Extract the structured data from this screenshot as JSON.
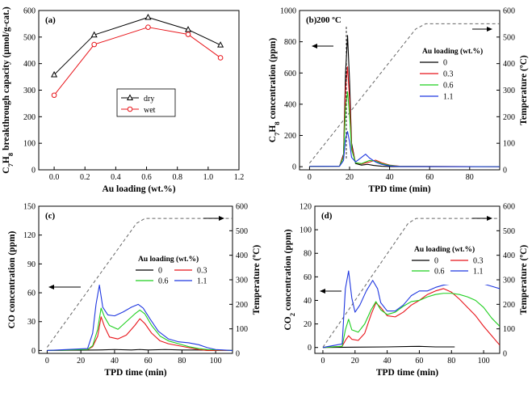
{
  "chart_data": [
    {
      "id": "a",
      "type": "line",
      "panel_label": "(a)",
      "xlabel": "Au loading (wt.%)",
      "ylabel": "C7H8 breakthrough capacity (μmol/g-cat.)",
      "xlim": [
        -0.1,
        1.2
      ],
      "ylim": [
        0,
        600
      ],
      "xticks": [
        "0.0",
        "0.2",
        "0.4",
        "0.6",
        "0.8",
        "1.0",
        "1.2"
      ],
      "yticks": [
        "0",
        "100",
        "200",
        "300",
        "400",
        "500",
        "600"
      ],
      "legend_position": "center-right",
      "series": [
        {
          "name": "dry",
          "color": "#000000",
          "marker": "triangle",
          "x": [
            0.0,
            0.26,
            0.61,
            0.87,
            1.08
          ],
          "y": [
            358,
            508,
            574,
            528,
            470
          ]
        },
        {
          "name": "wet",
          "color": "#e8141a",
          "marker": "circle",
          "x": [
            0.0,
            0.26,
            0.61,
            0.87,
            1.08
          ],
          "y": [
            281,
            472,
            537,
            510,
            422
          ]
        }
      ]
    },
    {
      "id": "b",
      "type": "line",
      "panel_label": "(b)",
      "annotation": "200 ºC",
      "xlabel": "TPD time (min)",
      "ylabel": "C7H8 concentration (ppm)",
      "y2label": "Temperature (ºC)",
      "xlim": [
        -5,
        95
      ],
      "ylim": [
        -20,
        1000
      ],
      "y2lim": [
        0,
        600
      ],
      "xticks": [
        "0",
        "20",
        "40",
        "60",
        "80"
      ],
      "yticks": [
        "0",
        "200",
        "400",
        "600",
        "800",
        "1000"
      ],
      "y2ticks": [
        "0",
        "100",
        "200",
        "300",
        "400",
        "500",
        "600"
      ],
      "legend_title": "Au loading (wt.%)",
      "legend_position": "top-right",
      "temperature": {
        "x": [
          0,
          53,
          58,
          95
        ],
        "y": [
          25,
          530,
          550,
          550
        ]
      },
      "series": [
        {
          "name": "0",
          "color": "#000000",
          "x": [
            0,
            15,
            17,
            18,
            19,
            20,
            21,
            23,
            26,
            29,
            32,
            36,
            40,
            45,
            95
          ],
          "y": [
            2,
            3,
            80,
            600,
            840,
            550,
            150,
            20,
            10,
            15,
            8,
            3,
            1,
            0,
            0
          ]
        },
        {
          "name": "0.3",
          "color": "#e8141a",
          "x": [
            0,
            15,
            17,
            18,
            19,
            20,
            21,
            23,
            26,
            30,
            33,
            36,
            40,
            45,
            95
          ],
          "y": [
            2,
            3,
            70,
            500,
            640,
            430,
            130,
            25,
            18,
            30,
            42,
            25,
            10,
            3,
            0
          ]
        },
        {
          "name": "0.6",
          "color": "#1fcf1f",
          "x": [
            0,
            15,
            17,
            18,
            19,
            20,
            21,
            23,
            26,
            30,
            33,
            36,
            40,
            45,
            95
          ],
          "y": [
            2,
            3,
            60,
            380,
            480,
            330,
            110,
            25,
            20,
            40,
            35,
            20,
            8,
            2,
            0
          ]
        },
        {
          "name": "1.1",
          "color": "#1f37e0",
          "x": [
            0,
            15,
            17,
            18,
            19,
            20,
            21,
            23,
            26,
            28,
            30,
            33,
            36,
            40,
            45,
            95
          ],
          "y": [
            2,
            3,
            40,
            180,
            225,
            160,
            60,
            30,
            60,
            80,
            55,
            30,
            15,
            5,
            1,
            0
          ]
        }
      ]
    },
    {
      "id": "c",
      "type": "line",
      "panel_label": "(c)",
      "xlabel": "TPD time (min)",
      "ylabel": "CO concentration (ppm)",
      "y2label": "Temperature (ºC)",
      "xlim": [
        -5,
        110
      ],
      "ylim": [
        -3,
        150
      ],
      "y2lim": [
        0,
        600
      ],
      "xticks": [
        "0",
        "20",
        "40",
        "60",
        "80",
        "100"
      ],
      "yticks": [
        "0",
        "30",
        "60",
        "90",
        "120",
        "150"
      ],
      "y2ticks": [
        "0",
        "100",
        "200",
        "300",
        "400",
        "500",
        "600"
      ],
      "legend_title": "Au loading (wt.%)",
      "legend_position": "center-right",
      "temperature": {
        "x": [
          0,
          53,
          58,
          110
        ],
        "y": [
          25,
          530,
          550,
          550
        ]
      },
      "series": [
        {
          "name": "0",
          "color": "#000000",
          "x": [
            0,
            30,
            40,
            50,
            55,
            60,
            70,
            80,
            90,
            100,
            110
          ],
          "y": [
            0,
            0.5,
            1,
            0.5,
            1,
            0.5,
            1,
            0.5,
            0.5,
            0,
            0
          ]
        },
        {
          "name": "0.3",
          "color": "#e8141a",
          "x": [
            0,
            24,
            27,
            30,
            32,
            34,
            37,
            42,
            47,
            52,
            55,
            58,
            62,
            67,
            72,
            78,
            84,
            90,
            95,
            110
          ],
          "y": [
            0,
            1,
            4,
            15,
            35,
            25,
            14,
            12,
            16,
            26,
            33,
            28,
            18,
            10,
            7,
            5,
            3,
            1,
            0,
            0
          ]
        },
        {
          "name": "0.6",
          "color": "#1fcf1f",
          "x": [
            0,
            24,
            27,
            30,
            32,
            34,
            37,
            42,
            47,
            52,
            55,
            58,
            62,
            67,
            72,
            78,
            84,
            90,
            95,
            110
          ],
          "y": [
            0,
            1,
            5,
            22,
            44,
            35,
            26,
            22,
            30,
            38,
            42,
            38,
            26,
            15,
            10,
            7,
            4,
            2,
            1,
            0
          ]
        },
        {
          "name": "1.1",
          "color": "#1f37e0",
          "x": [
            0,
            24,
            27,
            29,
            31,
            33,
            36,
            40,
            45,
            50,
            54,
            57,
            61,
            66,
            72,
            78,
            84,
            90,
            95,
            100,
            110
          ],
          "y": [
            0,
            2,
            18,
            48,
            68,
            45,
            37,
            36,
            40,
            45,
            48,
            44,
            33,
            20,
            12,
            9,
            8,
            6,
            3,
            1,
            0
          ]
        }
      ]
    },
    {
      "id": "d",
      "type": "line",
      "panel_label": "(d)",
      "xlabel": "TPD time (min)",
      "ylabel": "CO2 concentration (ppm)",
      "y2label": "Temperature (ºC)",
      "xlim": [
        -5,
        110
      ],
      "ylim": [
        -5,
        120
      ],
      "y2lim": [
        0,
        600
      ],
      "xticks": [
        "0",
        "20",
        "40",
        "60",
        "80",
        "100"
      ],
      "yticks": [
        "0",
        "20",
        "40",
        "60",
        "80",
        "100",
        "120"
      ],
      "y2ticks": [
        "0",
        "100",
        "200",
        "300",
        "400",
        "500",
        "600"
      ],
      "legend_title": "Au loading (wt.%)",
      "legend_position": "center-right",
      "temperature": {
        "x": [
          0,
          53,
          58,
          110
        ],
        "y": [
          25,
          530,
          550,
          550
        ]
      },
      "series": [
        {
          "name": "0",
          "color": "#000000",
          "x": [
            0,
            20,
            40,
            60,
            70,
            82
          ],
          "y": [
            0,
            0.3,
            0.5,
            1,
            0.5,
            0.5
          ]
        },
        {
          "name": "0.3",
          "color": "#e8141a",
          "x": [
            0,
            12,
            14,
            16,
            18,
            22,
            26,
            30,
            33,
            36,
            40,
            45,
            50,
            55,
            60,
            65,
            70,
            75,
            80,
            85,
            90,
            95,
            100,
            105,
            110
          ],
          "y": [
            0,
            1,
            6,
            10,
            7,
            6,
            12,
            28,
            38,
            34,
            27,
            26,
            30,
            36,
            40,
            45,
            48,
            50,
            47,
            41,
            34,
            27,
            18,
            10,
            2
          ]
        },
        {
          "name": "0.6",
          "color": "#1fcf1f",
          "x": [
            0,
            12,
            14,
            16,
            18,
            22,
            26,
            30,
            33,
            36,
            40,
            45,
            50,
            55,
            60,
            65,
            70,
            75,
            80,
            85,
            90,
            95,
            100,
            105,
            110
          ],
          "y": [
            0,
            1,
            15,
            24,
            15,
            13,
            20,
            32,
            39,
            32,
            28,
            30,
            35,
            39,
            40,
            43,
            45,
            46,
            46,
            45,
            43,
            40,
            34,
            25,
            18
          ]
        },
        {
          "name": "1.1",
          "color": "#1f37e0",
          "x": [
            0,
            12,
            14,
            16,
            18,
            20,
            23,
            27,
            31,
            34,
            36,
            40,
            45,
            50,
            55,
            60,
            65,
            70,
            75,
            80,
            85,
            90,
            95,
            100,
            105,
            110
          ],
          "y": [
            0,
            3,
            50,
            65,
            42,
            30,
            36,
            48,
            57,
            50,
            38,
            31,
            31,
            36,
            44,
            48,
            48,
            51,
            53,
            54,
            55,
            55,
            55,
            54,
            52,
            50
          ]
        }
      ]
    }
  ]
}
